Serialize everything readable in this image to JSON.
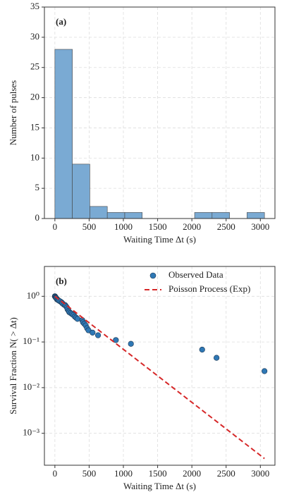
{
  "chart_data": [
    {
      "type": "histogram",
      "annotation": "(a)",
      "xlabel": "Waiting Time Δt (s)",
      "ylabel": "Number of pulses",
      "bins": [
        0,
        255,
        510,
        765,
        1020,
        1275,
        1530,
        1785,
        2040,
        2295,
        2550,
        2805,
        3060
      ],
      "values": [
        28,
        9,
        2,
        1,
        1,
        0,
        0,
        0,
        1,
        1,
        0,
        1
      ],
      "color": "#7aaad3",
      "xlim": [
        -153,
        3213
      ],
      "xticks": [
        0,
        500,
        1000,
        1500,
        2000,
        2500,
        3000
      ],
      "ylim": [
        0,
        35
      ],
      "yticks": [
        0,
        5,
        10,
        15,
        20,
        25,
        30,
        35
      ],
      "grid": true
    },
    {
      "type": "scatter",
      "annotation": "(b)",
      "xlabel": "Waiting Time Δt (s)",
      "ylabel": "Survival Fraction N( > Δt)",
      "yscale": "log",
      "grid": true,
      "legend": "upper right",
      "xlim": [
        -153,
        3213
      ],
      "xticks": [
        0,
        500,
        1000,
        1500,
        2000,
        2500,
        3000
      ],
      "ylim": [
        0.0002,
        4.5
      ],
      "yticks": [
        {
          "value": 0.001,
          "label": "10⁻³"
        },
        {
          "value": 0.01,
          "label": "10⁻²"
        },
        {
          "value": 0.1,
          "label": "10⁻¹"
        },
        {
          "value": 1,
          "label": "10⁰"
        }
      ],
      "series": [
        {
          "name": "Observed Data",
          "kind": "points",
          "color": "#2f78b5",
          "x": [
            0,
            5,
            10,
            15,
            20,
            30,
            40,
            50,
            60,
            80,
            100,
            110,
            130,
            150,
            160,
            175,
            185,
            200,
            210,
            230,
            250,
            270,
            290,
            310,
            330,
            400,
            410,
            430,
            450,
            470,
            490,
            550,
            630,
            890,
            1110,
            2150,
            2360,
            3060
          ],
          "values": [
            1.0,
            0.98,
            0.95,
            0.93,
            0.91,
            0.86,
            0.84,
            0.82,
            0.8,
            0.77,
            0.73,
            0.7,
            0.66,
            0.64,
            0.61,
            0.57,
            0.52,
            0.48,
            0.45,
            0.43,
            0.41,
            0.39,
            0.36,
            0.34,
            0.32,
            0.3,
            0.27,
            0.25,
            0.23,
            0.2,
            0.18,
            0.16,
            0.14,
            0.11,
            0.091,
            0.068,
            0.045,
            0.023
          ]
        },
        {
          "name": "Poisson Process (Exp)",
          "kind": "line",
          "color": "#d62728",
          "x": [
            0,
            3060
          ],
          "values": [
            1,
            0.00028
          ]
        }
      ]
    }
  ]
}
